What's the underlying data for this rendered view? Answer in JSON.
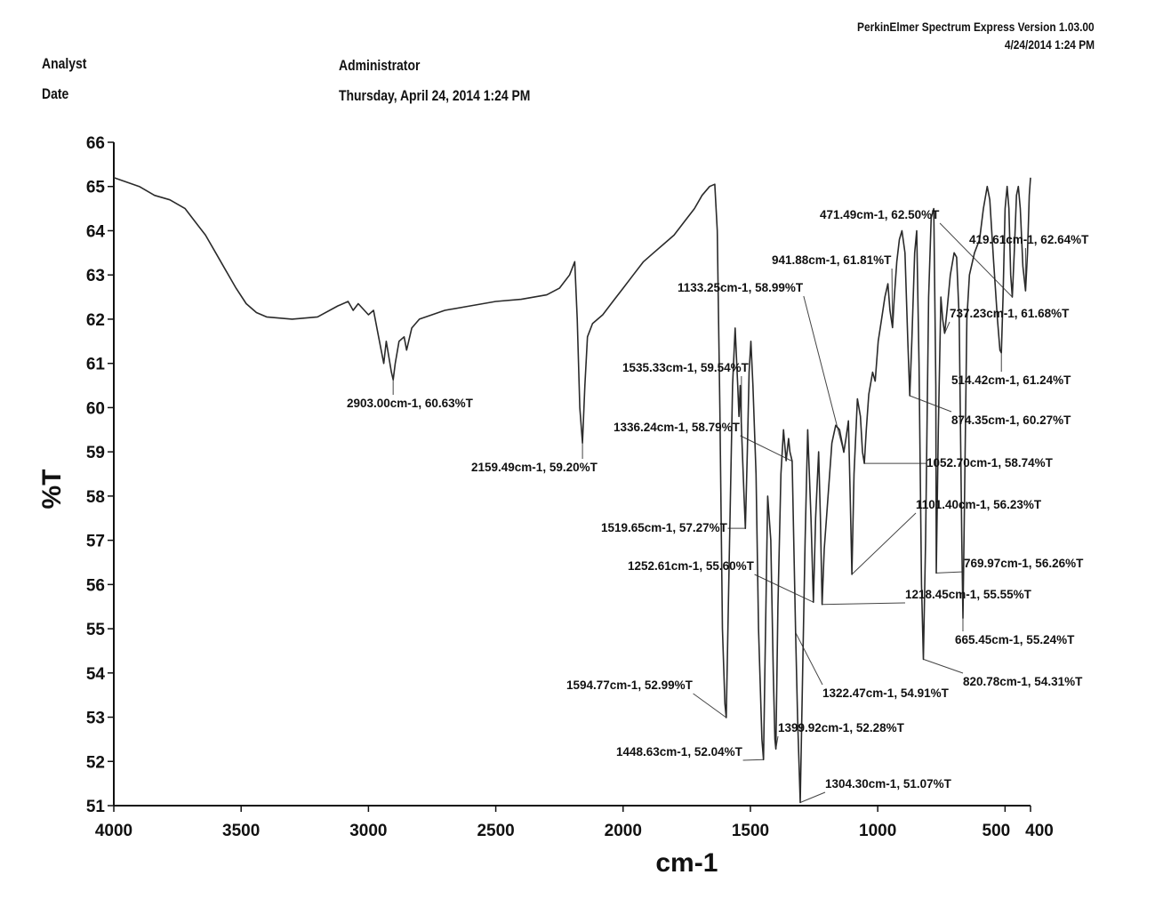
{
  "header": {
    "software": "PerkinElmer Spectrum Express Version 1.03.00",
    "stamp": "4/24/2014 1:24 PM",
    "analyst_label": "Analyst",
    "analyst_value": "Administrator",
    "date_label": "Date",
    "date_value": "Thursday, April 24, 2014 1:24 PM"
  },
  "chart_data": {
    "type": "line",
    "xlabel": "cm-1",
    "ylabel": "%T",
    "xlim": [
      4000,
      400
    ],
    "ylim": [
      51,
      66
    ],
    "x_ticks": [
      4000,
      3500,
      3000,
      2500,
      2000,
      1500,
      1000,
      500,
      400
    ],
    "x_tick_labels": [
      "4000",
      "3500",
      "3000",
      "2500",
      "2000",
      "1500",
      "1000",
      "500",
      "400"
    ],
    "y_ticks": [
      51,
      52,
      53,
      54,
      55,
      56,
      57,
      58,
      59,
      60,
      61,
      62,
      63,
      64,
      65,
      66
    ],
    "grid": false,
    "series": [
      {
        "points": [
          [
            4000,
            65.2
          ],
          [
            3900,
            65.0
          ],
          [
            3840,
            64.8
          ],
          [
            3780,
            64.7
          ],
          [
            3720,
            64.5
          ],
          [
            3680,
            64.2
          ],
          [
            3640,
            63.9
          ],
          [
            3600,
            63.5
          ],
          [
            3560,
            63.1
          ],
          [
            3520,
            62.7
          ],
          [
            3480,
            62.35
          ],
          [
            3440,
            62.15
          ],
          [
            3400,
            62.05
          ],
          [
            3300,
            62.0
          ],
          [
            3200,
            62.05
          ],
          [
            3120,
            62.3
          ],
          [
            3080,
            62.4
          ],
          [
            3060,
            62.2
          ],
          [
            3040,
            62.35
          ],
          [
            3000,
            62.1
          ],
          [
            2980,
            62.2
          ],
          [
            2960,
            61.6
          ],
          [
            2940,
            61.0
          ],
          [
            2930,
            61.5
          ],
          [
            2910,
            60.8
          ],
          [
            2903,
            60.63
          ],
          [
            2895,
            61.0
          ],
          [
            2880,
            61.5
          ],
          [
            2860,
            61.6
          ],
          [
            2850,
            61.3
          ],
          [
            2830,
            61.8
          ],
          [
            2800,
            62.0
          ],
          [
            2700,
            62.2
          ],
          [
            2600,
            62.3
          ],
          [
            2500,
            62.4
          ],
          [
            2400,
            62.45
          ],
          [
            2300,
            62.55
          ],
          [
            2250,
            62.7
          ],
          [
            2210,
            63.0
          ],
          [
            2190,
            63.3
          ],
          [
            2180,
            62.0
          ],
          [
            2170,
            60.0
          ],
          [
            2159.49,
            59.2
          ],
          [
            2150,
            60.5
          ],
          [
            2140,
            61.6
          ],
          [
            2120,
            61.9
          ],
          [
            2080,
            62.1
          ],
          [
            2040,
            62.4
          ],
          [
            2000,
            62.7
          ],
          [
            1960,
            63.0
          ],
          [
            1920,
            63.3
          ],
          [
            1880,
            63.5
          ],
          [
            1840,
            63.7
          ],
          [
            1800,
            63.9
          ],
          [
            1760,
            64.2
          ],
          [
            1720,
            64.5
          ],
          [
            1690,
            64.8
          ],
          [
            1660,
            65.0
          ],
          [
            1640,
            65.05
          ],
          [
            1630,
            64.0
          ],
          [
            1620,
            60.0
          ],
          [
            1610,
            55.0
          ],
          [
            1600,
            53.3
          ],
          [
            1594.77,
            52.99
          ],
          [
            1585,
            56.0
          ],
          [
            1570,
            60.5
          ],
          [
            1560,
            61.8
          ],
          [
            1550,
            60.5
          ],
          [
            1545,
            59.8
          ],
          [
            1540,
            60.5
          ],
          [
            1535.33,
            59.54
          ],
          [
            1525,
            58.0
          ],
          [
            1519.65,
            57.27
          ],
          [
            1512,
            59.0
          ],
          [
            1505,
            60.8
          ],
          [
            1498,
            61.5
          ],
          [
            1490,
            60.5
          ],
          [
            1478,
            58.5
          ],
          [
            1468,
            55.0
          ],
          [
            1455,
            52.5
          ],
          [
            1448.63,
            52.04
          ],
          [
            1442,
            54.5
          ],
          [
            1432,
            58.0
          ],
          [
            1420,
            57.0
          ],
          [
            1410,
            54.0
          ],
          [
            1404,
            52.5
          ],
          [
            1399.92,
            52.28
          ],
          [
            1392,
            55.5
          ],
          [
            1380,
            58.5
          ],
          [
            1370,
            59.5
          ],
          [
            1360,
            58.8
          ],
          [
            1350,
            59.3
          ],
          [
            1345,
            59.0
          ],
          [
            1336.24,
            58.79
          ],
          [
            1330,
            57.0
          ],
          [
            1322.47,
            54.91
          ],
          [
            1315,
            53.0
          ],
          [
            1304.3,
            51.07
          ],
          [
            1295,
            54.0
          ],
          [
            1285,
            57.0
          ],
          [
            1275,
            59.5
          ],
          [
            1262,
            57.5
          ],
          [
            1252.61,
            55.6
          ],
          [
            1244,
            57.5
          ],
          [
            1232,
            59.0
          ],
          [
            1225,
            57.5
          ],
          [
            1218.45,
            55.55
          ],
          [
            1210,
            56.8
          ],
          [
            1195,
            58.0
          ],
          [
            1180,
            59.2
          ],
          [
            1165,
            59.6
          ],
          [
            1150,
            59.5
          ],
          [
            1140,
            59.2
          ],
          [
            1133.25,
            58.99
          ],
          [
            1125,
            59.3
          ],
          [
            1115,
            59.7
          ],
          [
            1108,
            58.0
          ],
          [
            1101.4,
            56.23
          ],
          [
            1093,
            58.5
          ],
          [
            1080,
            60.2
          ],
          [
            1068,
            59.8
          ],
          [
            1060,
            59.0
          ],
          [
            1052.7,
            58.74
          ],
          [
            1045,
            59.5
          ],
          [
            1035,
            60.3
          ],
          [
            1020,
            60.8
          ],
          [
            1010,
            60.6
          ],
          [
            998,
            61.5
          ],
          [
            985,
            62.0
          ],
          [
            972,
            62.5
          ],
          [
            960,
            62.8
          ],
          [
            952,
            62.2
          ],
          [
            941.88,
            61.81
          ],
          [
            935,
            62.5
          ],
          [
            925,
            63.3
          ],
          [
            915,
            63.8
          ],
          [
            905,
            64.0
          ],
          [
            893,
            63.5
          ],
          [
            882,
            61.5
          ],
          [
            874.35,
            60.27
          ],
          [
            866,
            61.5
          ],
          [
            855,
            63.5
          ],
          [
            847,
            64.0
          ],
          [
            838,
            61.0
          ],
          [
            828,
            56.0
          ],
          [
            820.78,
            54.31
          ],
          [
            812,
            57.0
          ],
          [
            800,
            62.5
          ],
          [
            790,
            64.3
          ],
          [
            780,
            64.5
          ],
          [
            772,
            60.5
          ],
          [
            769.97,
            56.26
          ],
          [
            762,
            59.5
          ],
          [
            752,
            62.5
          ],
          [
            745,
            62.0
          ],
          [
            737.23,
            61.68
          ],
          [
            728,
            62.2
          ],
          [
            715,
            63.0
          ],
          [
            700,
            63.5
          ],
          [
            690,
            63.4
          ],
          [
            680,
            62.0
          ],
          [
            670,
            57.0
          ],
          [
            665.45,
            55.24
          ],
          [
            660,
            57.5
          ],
          [
            650,
            62.0
          ],
          [
            640,
            63.0
          ],
          [
            620,
            63.5
          ],
          [
            600,
            63.8
          ],
          [
            585,
            64.5
          ],
          [
            570,
            65.0
          ],
          [
            560,
            64.7
          ],
          [
            545,
            63.3
          ],
          [
            530,
            62.0
          ],
          [
            520,
            61.3
          ],
          [
            514.42,
            61.24
          ],
          [
            508,
            62.5
          ],
          [
            500,
            64.5
          ],
          [
            492,
            65.0
          ],
          [
            485,
            64.5
          ],
          [
            478,
            63.0
          ],
          [
            471.49,
            62.5
          ],
          [
            464,
            63.5
          ],
          [
            455,
            64.8
          ],
          [
            448,
            65.0
          ],
          [
            440,
            64.5
          ],
          [
            430,
            63.2
          ],
          [
            419.61,
            62.64
          ],
          [
            412,
            63.5
          ],
          [
            405,
            64.8
          ],
          [
            400,
            65.2
          ]
        ]
      }
    ],
    "annotations": [
      {
        "text": "2903.00cm-1, 60.63%T",
        "x": 2903.0,
        "y": 60.63
      },
      {
        "text": "2159.49cm-1, 59.20%T",
        "x": 2159.49,
        "y": 59.2
      },
      {
        "text": "1133.25cm-1, 58.99%T",
        "x": 1133.25,
        "y": 58.99
      },
      {
        "text": "941.88cm-1, 61.81%T",
        "x": 941.88,
        "y": 61.81
      },
      {
        "text": "471.49cm-1, 62.50%T",
        "x": 471.49,
        "y": 62.5
      },
      {
        "text": "419.61cm-1, 62.64%T",
        "x": 419.61,
        "y": 62.64
      },
      {
        "text": "737.23cm-1, 61.68%T",
        "x": 737.23,
        "y": 61.68
      },
      {
        "text": "1535.33cm-1, 59.54%T",
        "x": 1535.33,
        "y": 59.54
      },
      {
        "text": "514.42cm-1, 61.24%T",
        "x": 514.42,
        "y": 61.24
      },
      {
        "text": "874.35cm-1, 60.27%T",
        "x": 874.35,
        "y": 60.27
      },
      {
        "text": "1336.24cm-1, 58.79%T",
        "x": 1336.24,
        "y": 58.79
      },
      {
        "text": "1052.70cm-1, 58.74%T",
        "x": 1052.7,
        "y": 58.74
      },
      {
        "text": "1101.40cm-1, 56.23%T",
        "x": 1101.4,
        "y": 56.23
      },
      {
        "text": "1519.65cm-1, 57.27%T",
        "x": 1519.65,
        "y": 57.27
      },
      {
        "text": "769.97cm-1, 56.26%T",
        "x": 769.97,
        "y": 56.26
      },
      {
        "text": "1252.61cm-1, 55.60%T",
        "x": 1252.61,
        "y": 55.6
      },
      {
        "text": "1218.45cm-1, 55.55%T",
        "x": 1218.45,
        "y": 55.55
      },
      {
        "text": "665.45cm-1, 55.24%T",
        "x": 665.45,
        "y": 55.24
      },
      {
        "text": "1322.47cm-1, 54.91%T",
        "x": 1322.47,
        "y": 54.91
      },
      {
        "text": "820.78cm-1, 54.31%T",
        "x": 820.78,
        "y": 54.31
      },
      {
        "text": "1594.77cm-1, 52.99%T",
        "x": 1594.77,
        "y": 52.99
      },
      {
        "text": "1399.92cm-1, 52.28%T",
        "x": 1399.92,
        "y": 52.28
      },
      {
        "text": "1448.63cm-1, 52.04%T",
        "x": 1448.63,
        "y": 52.04
      },
      {
        "text": "1304.30cm-1, 51.07%T",
        "x": 1304.3,
        "y": 51.07
      }
    ]
  }
}
